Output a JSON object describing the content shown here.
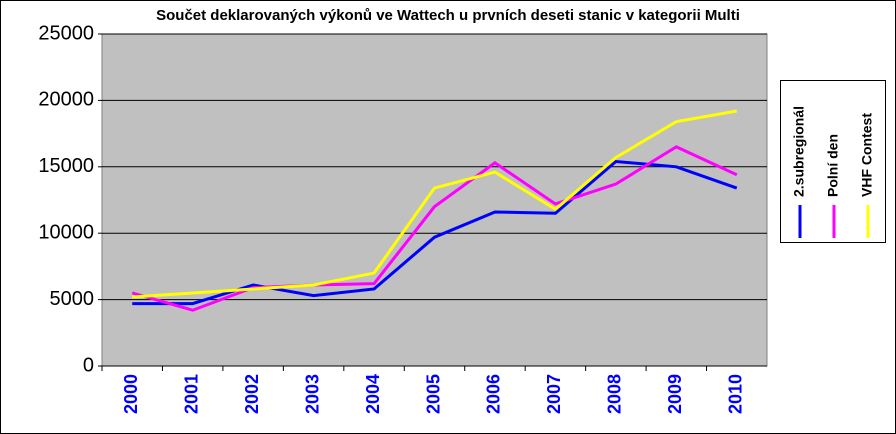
{
  "chart_data": {
    "type": "line",
    "title": "Součet deklarovaných výkonů ve Wattech u prvních deseti stanic v kategorii Multi",
    "categories": [
      "2000",
      "2001",
      "2002",
      "2003",
      "2004",
      "2005",
      "2006",
      "2007",
      "2008",
      "2009",
      "2010"
    ],
    "series": [
      {
        "name": "2.subregionál",
        "color": "#0000ff",
        "values": [
          4700,
          4700,
          6100,
          5300,
          5800,
          9700,
          11600,
          11500,
          15400,
          15000,
          13400
        ]
      },
      {
        "name": "Polní den",
        "color": "#ff00ff",
        "values": [
          5500,
          4200,
          5900,
          6100,
          6200,
          12000,
          15300,
          12200,
          13700,
          16500,
          14400
        ]
      },
      {
        "name": "VHF Contest",
        "color": "#ffff00",
        "values": [
          5200,
          5500,
          5800,
          6100,
          7000,
          13400,
          14600,
          11800,
          15700,
          18400,
          19200
        ]
      }
    ],
    "ylim": [
      0,
      25000
    ],
    "yticks": [
      0,
      5000,
      10000,
      15000,
      20000,
      25000
    ],
    "grid": true,
    "legend": "right"
  }
}
